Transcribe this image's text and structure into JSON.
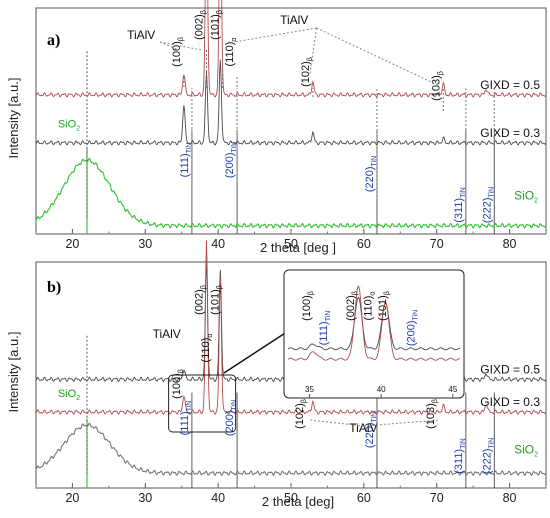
{
  "chart_data": [
    {
      "panel": "a)",
      "type": "line",
      "xlabel": "2 theta [deg ]",
      "ylabel": "Intensity [a.u.]",
      "xlim": [
        15,
        85
      ],
      "xticks": [
        20,
        30,
        40,
        50,
        60,
        70,
        80
      ],
      "series": [
        {
          "name": "GIXD = 0.5",
          "color": "#b24a4a",
          "baseline": 0.62,
          "peaks": [
            [
              35.3,
              0.1
            ],
            [
              38.4,
              0.88
            ],
            [
              40.3,
              0.95
            ],
            [
              53.0,
              0.06
            ],
            [
              70.9,
              0.05
            ],
            [
              76.8,
              0.03
            ]
          ]
        },
        {
          "name": "GIXD = 0.3",
          "color": "#4a4a4a",
          "baseline": 0.4,
          "peaks": [
            [
              35.3,
              0.18
            ],
            [
              38.4,
              0.32
            ],
            [
              40.3,
              0.38
            ],
            [
              53.0,
              0.05
            ],
            [
              70.9,
              0.02
            ]
          ]
        },
        {
          "name": "SiO2",
          "color": "#2fbf2f",
          "baseline": 0.02,
          "hump": [
            22.0,
            0.3,
            4.5
          ]
        }
      ],
      "labels": [
        {
          "x": 35.3,
          "main": "(100)",
          "sub": "β",
          "color": "black"
        },
        {
          "x": 38.4,
          "main": "(002)",
          "sub": "β",
          "color": "black"
        },
        {
          "x": 40.5,
          "main": "(101)",
          "sub": "β",
          "color": "black"
        },
        {
          "x": 42.3,
          "main": "(110)",
          "sub": "α",
          "color": "black"
        },
        {
          "x": 53.0,
          "main": "(102)",
          "sub": "β",
          "color": "black"
        },
        {
          "x": 70.9,
          "main": "(103)",
          "sub": "β",
          "color": "black"
        },
        {
          "x": 36.4,
          "main": "(111)",
          "sub": "TiN",
          "color": "blue"
        },
        {
          "x": 42.6,
          "main": "(200)",
          "sub": "TiN",
          "color": "blue"
        },
        {
          "x": 61.8,
          "main": "(220)",
          "sub": "TiN",
          "color": "blue"
        },
        {
          "x": 74.0,
          "main": "(311)",
          "sub": "TiN",
          "color": "blue"
        },
        {
          "x": 77.9,
          "main": "(222)",
          "sub": "TiN",
          "color": "blue"
        }
      ],
      "phase_label": "TiAlV",
      "sio2_label": "SiO",
      "sio2_sub": "2"
    },
    {
      "panel": "b)",
      "type": "line",
      "xlabel": "2 theta [deg]",
      "ylabel": "Intensity [a.u.]",
      "xlim": [
        15,
        85
      ],
      "xticks": [
        20,
        30,
        40,
        50,
        60,
        70,
        80
      ],
      "series": [
        {
          "name": "GIXD = 0.5",
          "color": "#4a4a4a",
          "baseline": 0.48,
          "peaks": [
            [
              35.3,
              0.05
            ],
            [
              38.4,
              0.55
            ],
            [
              40.3,
              0.5
            ],
            [
              53.0,
              0.04
            ],
            [
              76.8,
              0.03
            ]
          ]
        },
        {
          "name": "GIXD = 0.3",
          "color": "#b24a4a",
          "baseline": 0.33,
          "peaks": [
            [
              35.3,
              0.08
            ],
            [
              38.4,
              0.78
            ],
            [
              40.3,
              0.62
            ],
            [
              53.0,
              0.05
            ],
            [
              70.9,
              0.03
            ],
            [
              76.8,
              0.04
            ]
          ]
        },
        {
          "name": "SiO2",
          "color": "#777777",
          "baseline": 0.05,
          "hump": [
            22.0,
            0.22,
            4.5
          ]
        }
      ],
      "labels": [
        {
          "x": 35.3,
          "main": "(100)",
          "sub": "β",
          "color": "black"
        },
        {
          "x": 38.4,
          "main": "(002)",
          "sub": "β",
          "color": "black"
        },
        {
          "x": 40.5,
          "main": "(101)",
          "sub": "β",
          "color": "black"
        },
        {
          "x": 39.5,
          "main": "(110)",
          "sub": "α",
          "color": "black"
        },
        {
          "x": 53.0,
          "main": "(102)",
          "sub": "β",
          "color": "black"
        },
        {
          "x": 70.9,
          "main": "(103)",
          "sub": "β",
          "color": "black"
        },
        {
          "x": 36.4,
          "main": "(111)",
          "sub": "TiN",
          "color": "blue"
        },
        {
          "x": 42.6,
          "main": "(200)",
          "sub": "TiN",
          "color": "blue"
        },
        {
          "x": 61.8,
          "main": "(220)",
          "sub": "TiN",
          "color": "blue"
        },
        {
          "x": 74.0,
          "main": "(311)",
          "sub": "TiN",
          "color": "blue"
        },
        {
          "x": 77.9,
          "main": "(222)",
          "sub": "TiN",
          "color": "blue"
        }
      ],
      "phase_label": "TiAlV",
      "sio2_label": "SiO",
      "sio2_sub": "2",
      "inset": {
        "xlim": [
          33.5,
          45.5
        ],
        "xticks": [
          35,
          40,
          45
        ],
        "labels": [
          {
            "x": 35.3,
            "main": "(100)",
            "sub": "β",
            "color": "black"
          },
          {
            "x": 36.5,
            "main": "(111)",
            "sub": "TiN",
            "color": "blue"
          },
          {
            "x": 38.4,
            "main": "(002)",
            "sub": "β",
            "color": "black"
          },
          {
            "x": 39.6,
            "main": "(110)",
            "sub": "α",
            "color": "black"
          },
          {
            "x": 40.6,
            "main": "(101)",
            "sub": "β",
            "color": "black"
          },
          {
            "x": 42.6,
            "main": "(200)",
            "sub": "TiN",
            "color": "blue"
          }
        ]
      }
    }
  ]
}
